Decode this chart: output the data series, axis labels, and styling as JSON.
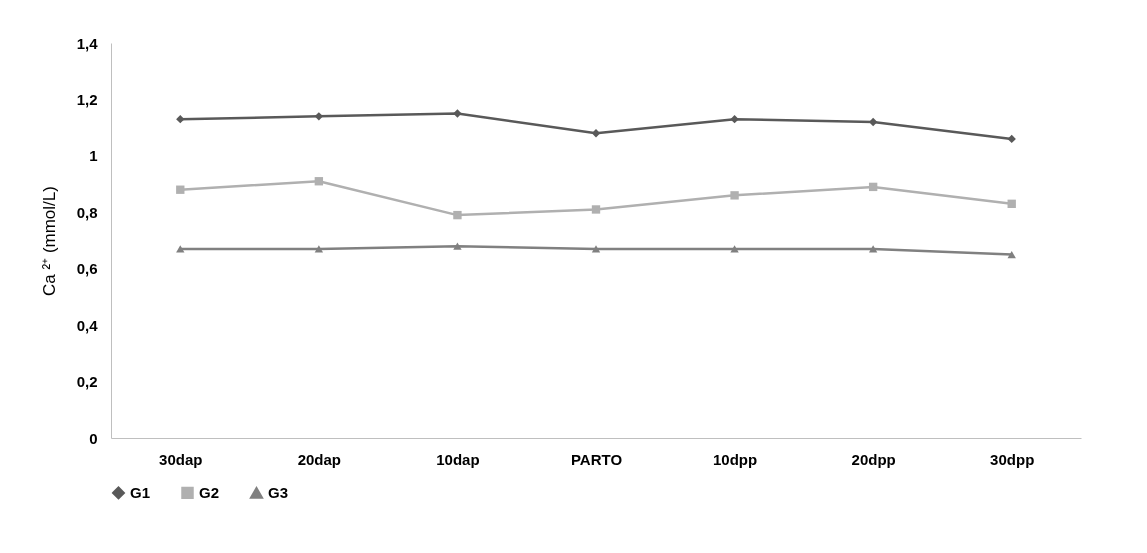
{
  "chart_data": {
    "type": "line",
    "ylabel": "Ca ²⁺ (mmol/L)",
    "categories": [
      "30dap",
      "20dap",
      "10dap",
      "PARTO",
      "10dpp",
      "20dpp",
      "30dpp"
    ],
    "series": [
      {
        "name": "G1",
        "color": "#595959",
        "marker": "diamond",
        "values": [
          1.13,
          1.14,
          1.15,
          1.08,
          1.13,
          1.12,
          1.06
        ]
      },
      {
        "name": "G2",
        "color": "#b0b0b0",
        "marker": "square",
        "values": [
          0.88,
          0.91,
          0.79,
          0.81,
          0.86,
          0.89,
          0.83
        ]
      },
      {
        "name": "G3",
        "color": "#808080",
        "marker": "triangle",
        "values": [
          0.67,
          0.67,
          0.68,
          0.67,
          0.67,
          0.67,
          0.65
        ]
      }
    ],
    "ylim": [
      0,
      1.4
    ],
    "yticks": [
      0,
      {
        "value": 0.2,
        "label": "0,2"
      },
      {
        "value": 0.4,
        "label": "0,4"
      },
      {
        "value": 0.6,
        "label": "0,6"
      },
      {
        "value": 0.8,
        "label": "0,8"
      },
      1,
      {
        "value": 1.2,
        "label": "1,2"
      },
      {
        "value": 1.4,
        "label": "1,4"
      }
    ],
    "grid": false,
    "legend": "bottom"
  }
}
